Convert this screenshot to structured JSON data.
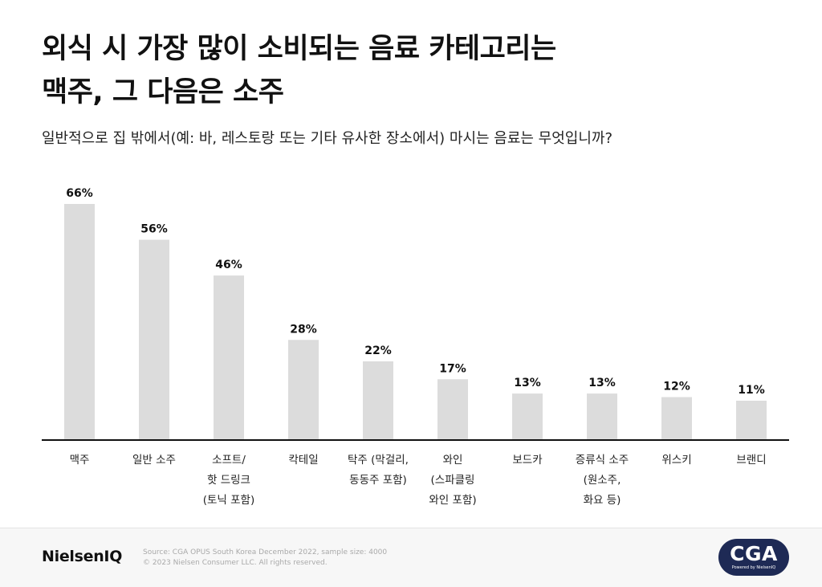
{
  "header": {
    "title_lines": [
      "외식 시 가장 많이 소비되는 음료 카테고리는",
      "맥주, 그 다음은 소주"
    ],
    "question": "일반적으로 집 밖에서(예: 바, 레스토랑 또는 기타 유사한 장소에서) 마시는 음료는 무엇입니까?"
  },
  "chart_data": {
    "type": "bar",
    "title": "외식 시 가장 많이 소비되는 음료 카테고리는 맥주, 그 다음은 소주",
    "subtitle": "일반적으로 집 밖에서(예: 바, 레스토랑 또는 기타 유사한 장소에서) 마시는 음료는 무엇입니까?",
    "categories": [
      [
        "맥주"
      ],
      [
        "일반 소주"
      ],
      [
        "소프트/",
        "핫 드링크",
        "(토닉 포함)"
      ],
      [
        "칵테일"
      ],
      [
        "탁주 (막걸리,",
        "동동주 포함)"
      ],
      [
        "와인",
        "(스파클링",
        "와인 포함)"
      ],
      [
        "보드카"
      ],
      [
        "증류식 소주",
        "(원소주,",
        "화요 등)"
      ],
      [
        "위스키"
      ],
      [
        "브랜디"
      ]
    ],
    "values": [
      66,
      56,
      46,
      28,
      22,
      17,
      13,
      13,
      12,
      11
    ],
    "value_labels": [
      "66%",
      "56%",
      "46%",
      "28%",
      "22%",
      "17%",
      "13%",
      "13%",
      "12%",
      "11%"
    ],
    "unit": "%",
    "ylim": [
      0,
      66
    ],
    "grid": false,
    "legend": "none",
    "bar_color": "#dcdcdc",
    "axis_color": "#111111"
  },
  "footer": {
    "brand": "NielsenIQ",
    "source": "Source: CGA OPUS South Korea December 2022, sample size: 4000",
    "copyright": "© 2023 Nielsen Consumer LLC. All rights reserved.",
    "badge_text": "CGA",
    "badge_subtext": "Powered by NielsenIQ",
    "badge_color": "#1e2a55"
  }
}
